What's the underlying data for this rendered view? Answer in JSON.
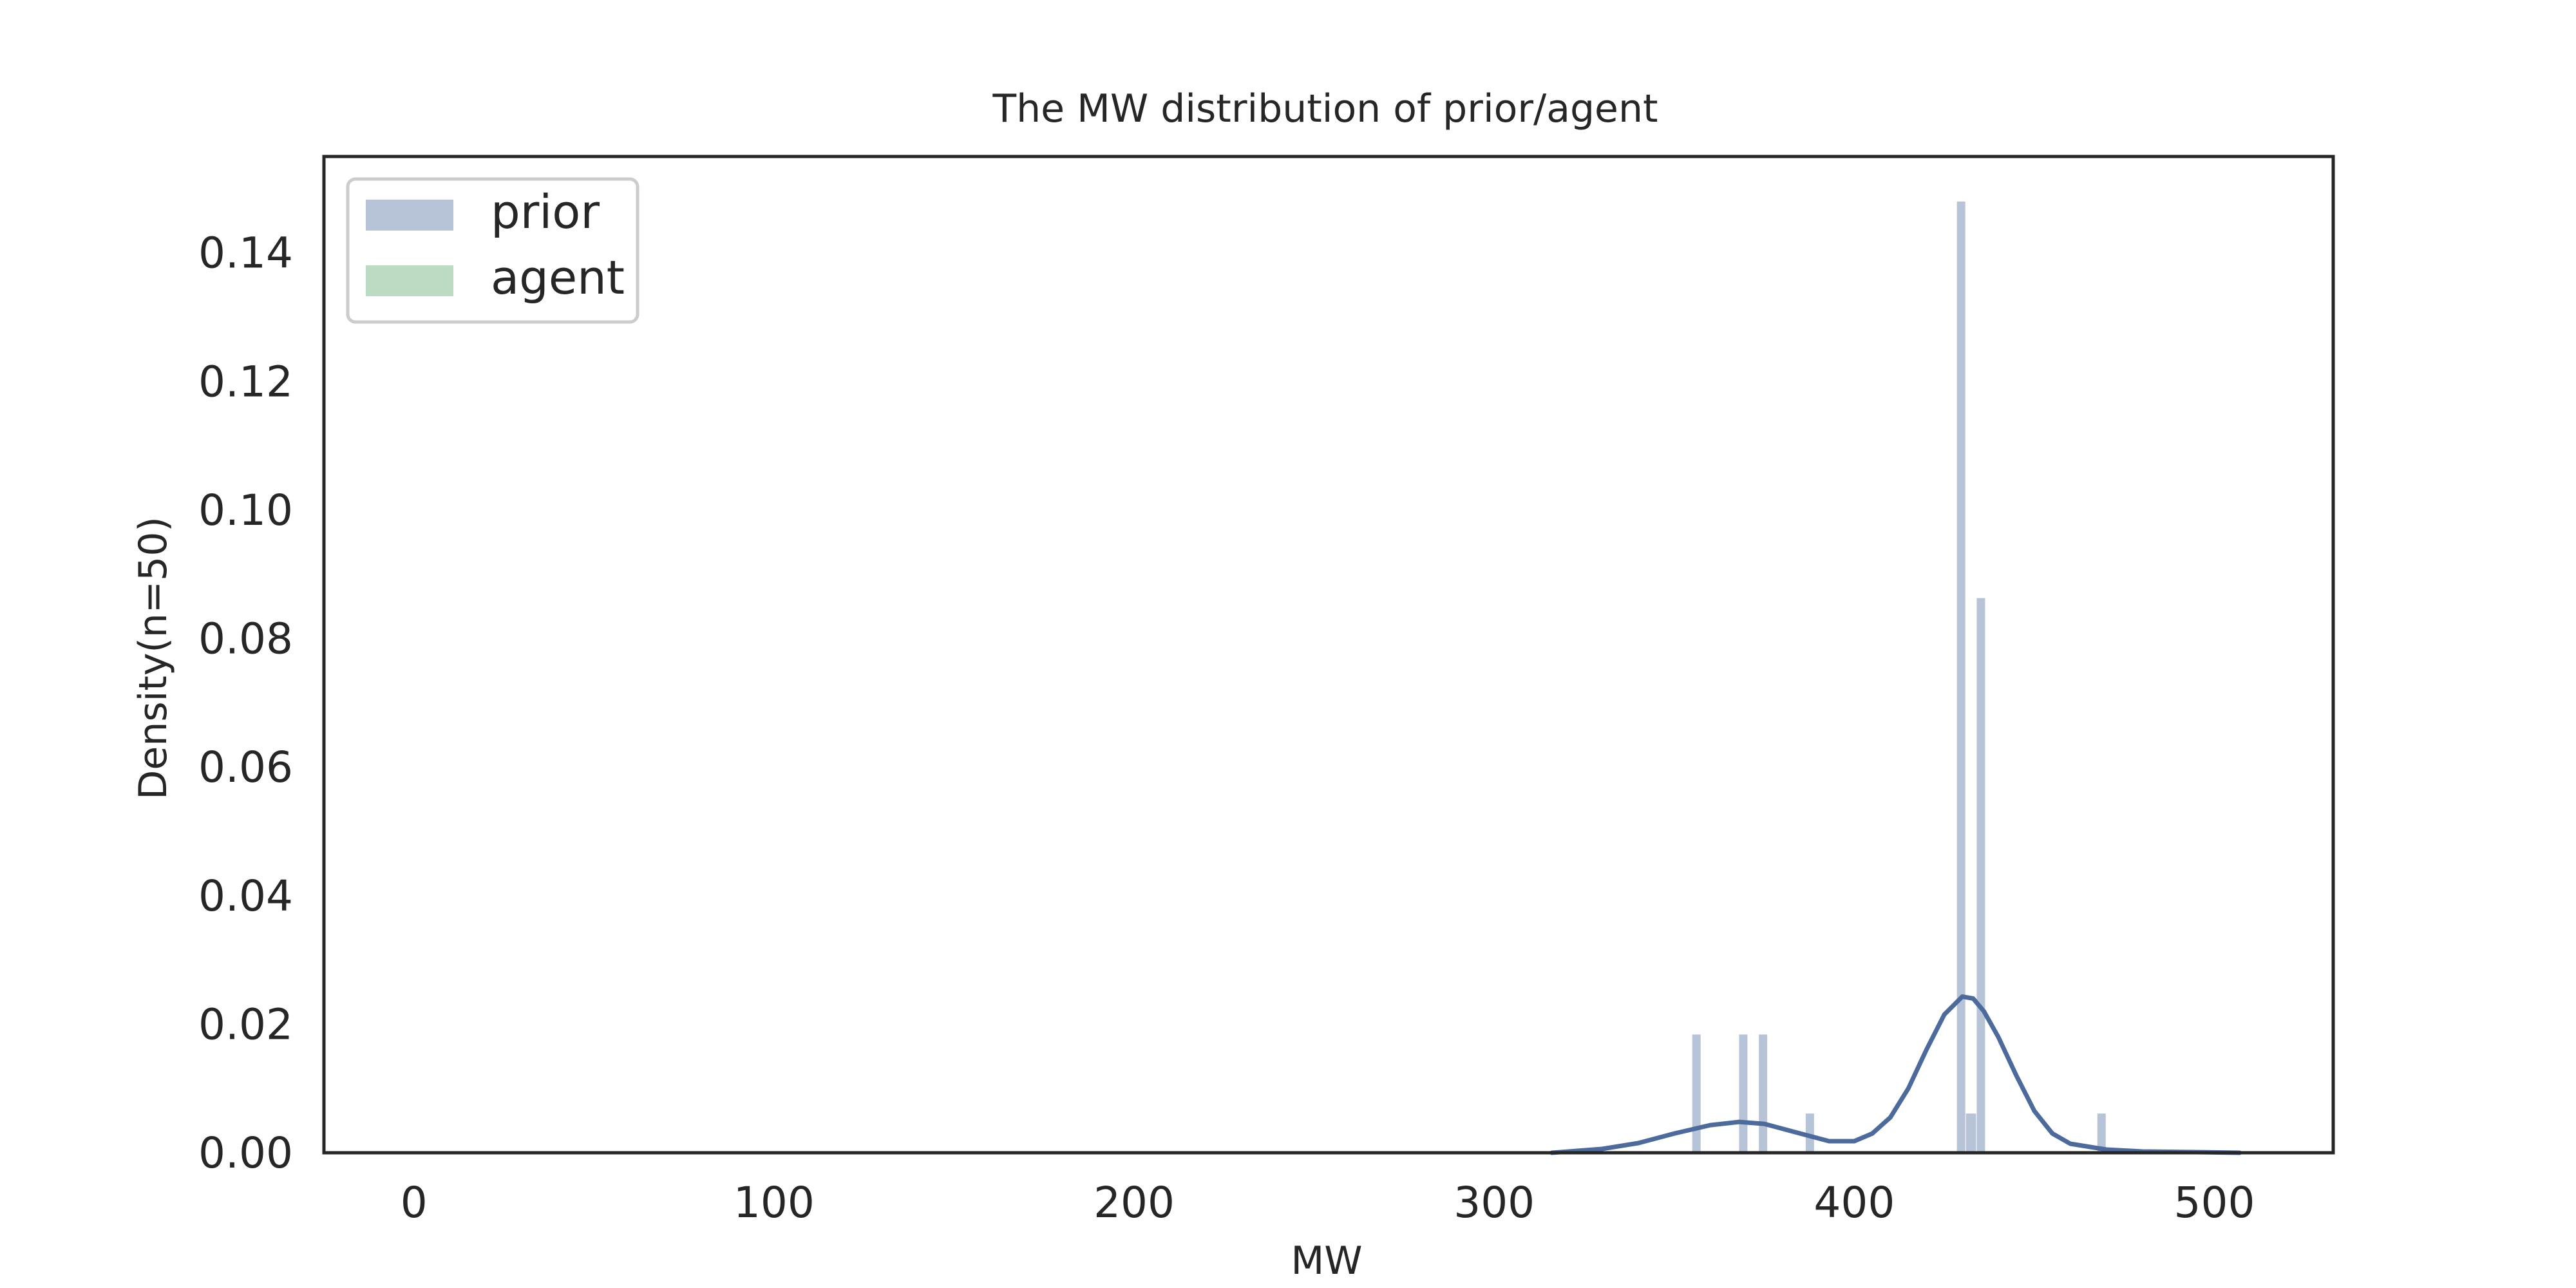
{
  "chart_data": {
    "type": "histogram",
    "title": "The MW distribution of prior/agent",
    "xlabel": "MW",
    "ylabel": "Density(n=50)",
    "xlim": [
      -25,
      533
    ],
    "ylim": [
      0,
      0.155
    ],
    "xticks": [
      0,
      100,
      200,
      300,
      400,
      500
    ],
    "yticks": [
      0.0,
      0.02,
      0.04,
      0.06,
      0.08,
      0.1,
      0.12,
      0.14
    ],
    "ytick_labels": [
      "0.00",
      "0.02",
      "0.04",
      "0.06",
      "0.08",
      "0.10",
      "0.12",
      "0.14"
    ],
    "grid": false,
    "legend_position": "top-left",
    "series": [
      {
        "name": "prior",
        "color": "#4c6a9c",
        "bars": [
          {
            "x0": 355.0,
            "x1": 357.5,
            "value": 0.0184
          },
          {
            "x0": 368.0,
            "x1": 370.5,
            "value": 0.0184
          },
          {
            "x0": 373.5,
            "x1": 376.0,
            "value": 0.0184
          },
          {
            "x0": 386.5,
            "x1": 389.0,
            "value": 0.0061
          },
          {
            "x0": 428.5,
            "x1": 431.0,
            "value": 0.148
          },
          {
            "x0": 431.0,
            "x1": 434.0,
            "value": 0.0061
          },
          {
            "x0": 434.0,
            "x1": 436.5,
            "value": 0.0863
          },
          {
            "x0": 467.5,
            "x1": 470.0,
            "value": 0.0061
          }
        ],
        "kde": {
          "x": [
            316,
            330,
            340,
            350,
            360,
            368,
            375,
            385,
            393,
            400,
            405,
            410,
            415,
            420,
            425,
            430,
            433,
            436,
            440,
            445,
            450,
            455,
            460,
            470,
            480,
            495,
            507
          ],
          "y": [
            0.0,
            0.0006,
            0.0015,
            0.003,
            0.0043,
            0.0048,
            0.0045,
            0.003,
            0.0018,
            0.0018,
            0.003,
            0.0055,
            0.01,
            0.016,
            0.0215,
            0.0243,
            0.024,
            0.022,
            0.018,
            0.012,
            0.0065,
            0.003,
            0.0014,
            0.0005,
            0.0002,
            0.0001,
            0.0
          ]
        }
      },
      {
        "name": "agent",
        "color": "#55a868",
        "bars": []
      }
    ]
  }
}
